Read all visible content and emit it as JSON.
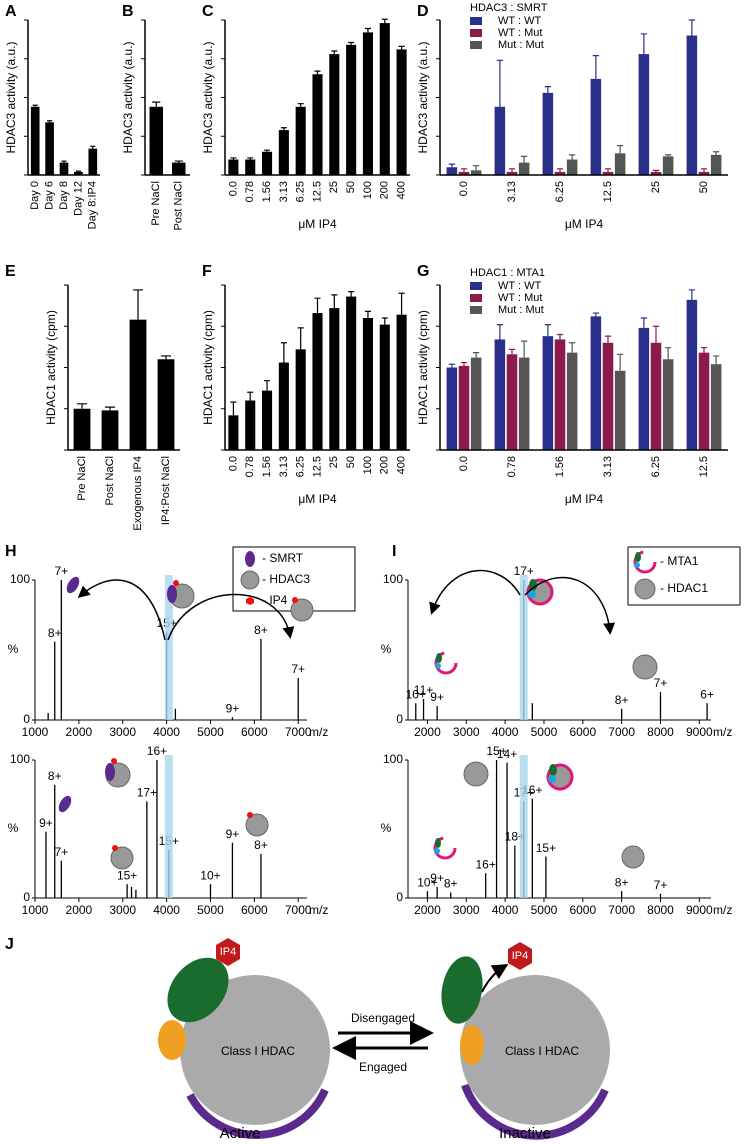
{
  "chart_data": [
    {
      "type": "bar",
      "panel": "A",
      "ylabel": "HDAC3 activity (a.u.)",
      "categories": [
        "Day 0",
        "Day 6",
        "Day 8",
        "Day 12",
        "Day 8:IP4"
      ],
      "values": [
        44,
        34,
        8,
        2,
        17
      ],
      "errors": [
        1,
        1,
        1,
        0.5,
        1.5
      ],
      "color": "#000000",
      "ylim": [
        0,
        100
      ],
      "yticks": [
        0,
        25,
        50,
        75,
        100
      ],
      "ytick_labels": false
    },
    {
      "type": "bar",
      "panel": "B",
      "ylabel": "HDAC3 activity (a.u.)",
      "categories": [
        "Pre NaCl",
        "Post NaCl"
      ],
      "values": [
        44,
        8
      ],
      "errors": [
        3,
        1
      ],
      "color": "#000000",
      "ylim": [
        0,
        100
      ],
      "yticks": [
        0,
        25,
        50,
        75,
        100
      ],
      "ytick_labels": false
    },
    {
      "type": "bar",
      "panel": "C",
      "ylabel": "HDAC3 activity (a.u.)",
      "xlabel": "μM IP4",
      "categories": [
        "0.0",
        "0.78",
        "1.56",
        "3.13",
        "6.25",
        "12.5",
        "25",
        "50",
        "100",
        "200",
        "400"
      ],
      "values": [
        10,
        10,
        15,
        29,
        44,
        65,
        78,
        84,
        92,
        98,
        81
      ],
      "errors": [
        1,
        1,
        1,
        1.5,
        2,
        2,
        2,
        1.5,
        2.5,
        2.5,
        2
      ],
      "color": "#000000",
      "ylim": [
        0,
        100
      ],
      "yticks": [
        0,
        25,
        50,
        75,
        100
      ],
      "ytick_labels": false
    },
    {
      "type": "bar",
      "panel": "D",
      "ylabel": "HDAC3 activity (a.u.)",
      "xlabel": "μM IP4",
      "legend_title": "HDAC3 : SMRT",
      "categories": [
        "0.0",
        "3.13",
        "6.25",
        "12.5",
        "25",
        "50"
      ],
      "series": [
        {
          "name": "WT : WT",
          "color": "#2b2f8c",
          "values": [
            5,
            44,
            53,
            62,
            78,
            90
          ],
          "errors": [
            2,
            30,
            4,
            15,
            13,
            10
          ]
        },
        {
          "name": "WT : Mut",
          "color": "#8c1a4a",
          "values": [
            2,
            2,
            2,
            2,
            2,
            2
          ],
          "errors": [
            2,
            2,
            2,
            2,
            1,
            2
          ]
        },
        {
          "name": "Mut : Mut",
          "color": "#555555",
          "values": [
            3,
            8,
            10,
            14,
            12,
            13
          ],
          "errors": [
            3,
            4,
            3,
            5,
            1,
            2
          ]
        }
      ],
      "ylim": [
        0,
        100
      ],
      "yticks": [
        0,
        25,
        50,
        75,
        100
      ],
      "ytick_labels": false
    },
    {
      "type": "bar",
      "panel": "E",
      "ylabel": "HDAC1 activity (cpm)",
      "categories": [
        "Pre NaCl",
        "Post NaCl",
        "Exogenous IP4",
        "IP4:Post NaCl"
      ],
      "values": [
        25,
        24,
        79,
        55
      ],
      "errors": [
        3,
        2,
        18,
        2
      ],
      "color": "#000000",
      "ylim": [
        0,
        100
      ],
      "yticks": [
        0,
        25,
        50,
        75,
        100
      ],
      "ytick_labels": false
    },
    {
      "type": "bar",
      "panel": "F",
      "ylabel": "HDAC1 activity (cpm)",
      "xlabel": "μM IP4",
      "categories": [
        "0.0",
        "0.78",
        "1.56",
        "3.13",
        "6.25",
        "12.5",
        "25",
        "50",
        "100",
        "200",
        "400"
      ],
      "values": [
        21,
        30,
        36,
        53,
        61,
        83,
        86,
        93,
        80,
        76,
        82
      ],
      "errors": [
        8,
        5,
        6,
        12,
        13,
        9,
        8,
        3,
        4,
        4,
        13
      ],
      "color": "#000000",
      "ylim": [
        0,
        100
      ],
      "yticks": [
        0,
        25,
        50,
        75,
        100
      ],
      "ytick_labels": false
    },
    {
      "type": "bar",
      "panel": "G",
      "ylabel": "HDAC1 activity (cpm)",
      "xlabel": "μM IP4",
      "legend_title": "HDAC1 : MTA1",
      "categories": [
        "0.0",
        "0.78",
        "1.56",
        "3.13",
        "6.25",
        "12.5"
      ],
      "series": [
        {
          "name": "WT : WT",
          "color": "#2b2f8c",
          "values": [
            50,
            67,
            69,
            81,
            74,
            91
          ],
          "errors": [
            2,
            9,
            7,
            2,
            6,
            6
          ]
        },
        {
          "name": "WT : Mut",
          "color": "#8c1a4a",
          "values": [
            51,
            58,
            67,
            65,
            65,
            59
          ],
          "errors": [
            2,
            3,
            3,
            4,
            10,
            3
          ]
        },
        {
          "name": "Mut : Mut",
          "color": "#555555",
          "values": [
            56,
            56,
            59,
            48,
            55,
            52
          ],
          "errors": [
            3,
            10,
            6,
            10,
            7,
            5
          ]
        }
      ],
      "ylim": [
        0,
        100
      ],
      "yticks": [
        0,
        25,
        50,
        75,
        100
      ],
      "ytick_labels": false
    },
    {
      "type": "spectrum",
      "panel": "H",
      "ylabel": "%",
      "xlabel": "m/z",
      "color": "#000000",
      "highlight_x": 4050,
      "key": [
        "- SMRT",
        "- HDAC3",
        "- IP4"
      ],
      "x": [
        1300,
        1450,
        1600,
        4000,
        4200,
        5500,
        6150,
        7000
      ],
      "values": [
        5,
        56,
        100,
        63,
        8,
        2,
        58,
        30
      ],
      "peak_labels": [
        null,
        "8+",
        "7+",
        "15+",
        null,
        "9+",
        "8+",
        "7+"
      ],
      "xlim": [
        1000,
        7200
      ],
      "xticks": [
        1000,
        2000,
        3000,
        4000,
        5000,
        6000,
        7000
      ],
      "ylim": [
        0,
        100
      ],
      "yticks": [
        0,
        100
      ]
    },
    {
      "type": "spectrum",
      "ylabel": "%",
      "xlabel": "m/z",
      "color": "#000000",
      "highlight_x": 4050,
      "x": [
        1250,
        1450,
        1600,
        3100,
        3200,
        3300,
        3550,
        3780,
        4050,
        5000,
        5500,
        6150
      ],
      "values": [
        48,
        82,
        27,
        10,
        8,
        6,
        70,
        100,
        35,
        10,
        40,
        32
      ],
      "peak_labels": [
        "9+",
        "8+",
        "7+",
        "15+",
        null,
        null,
        "17+",
        "16+",
        "15+",
        "10+",
        "9+",
        "8+"
      ],
      "xlim": [
        1000,
        7200
      ],
      "xticks": [
        1000,
        2000,
        3000,
        4000,
        5000,
        6000,
        7000
      ],
      "ylim": [
        0,
        100
      ],
      "yticks": [
        0,
        100
      ]
    },
    {
      "type": "spectrum",
      "panel": "I",
      "ylabel": "%",
      "xlabel": "m/z",
      "color": "#000000",
      "highlight_x": 4480,
      "key": [
        "- MTA1",
        "- HDAC1"
      ],
      "x": [
        1700,
        1900,
        2250,
        4480,
        4700,
        7000,
        8000,
        9200
      ],
      "values": [
        12,
        15,
        10,
        100,
        12,
        8,
        20,
        12
      ],
      "peak_labels": [
        "10+",
        "11+",
        "9+",
        "17+",
        null,
        "8+",
        "7+",
        "6+"
      ],
      "xlim": [
        1500,
        9300
      ],
      "xticks": [
        2000,
        3000,
        4000,
        5000,
        6000,
        7000,
        8000,
        9000
      ],
      "ylim": [
        0,
        100
      ],
      "yticks": [
        0,
        100
      ]
    },
    {
      "type": "spectrum",
      "ylabel": "%",
      "xlabel": "m/z",
      "color": "#000000",
      "highlight_x": 4480,
      "x": [
        2000,
        2250,
        2600,
        3500,
        3780,
        4050,
        4250,
        4480,
        4700,
        5050,
        7000,
        8000
      ],
      "values": [
        5,
        8,
        4,
        18,
        100,
        98,
        38,
        70,
        72,
        30,
        5,
        3
      ],
      "peak_labels": [
        "10+",
        "9+",
        "8+",
        "16+",
        "15+",
        "14+",
        "18+",
        "17+",
        "16+",
        "15+",
        "8+",
        "7+"
      ],
      "xlim": [
        1500,
        9300
      ],
      "xticks": [
        2000,
        3000,
        4000,
        5000,
        6000,
        7000,
        8000,
        9000
      ],
      "ylim": [
        0,
        100
      ],
      "yticks": [
        0,
        100
      ]
    }
  ],
  "diagram": {
    "panel": "J",
    "enzyme": [
      "Class I HDAC",
      "Class I HDAC"
    ],
    "ligand": [
      "IP4",
      "IP4"
    ],
    "arrows": [
      "Disengaged",
      "Engaged"
    ],
    "states": [
      "Active",
      "Inactive"
    ]
  }
}
